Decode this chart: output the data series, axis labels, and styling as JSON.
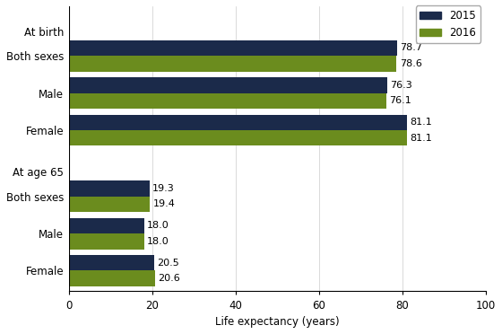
{
  "xlabel": "Life expectancy (years)",
  "xlim": [
    0,
    100
  ],
  "xticks": [
    0,
    20,
    40,
    60,
    80,
    100
  ],
  "bar_color_2015": "#1b2a4a",
  "bar_color_2016": "#6b8c1e",
  "bar_height": 0.38,
  "annotation_fontsize": 8,
  "label_fontsize": 8.5,
  "axis_fontsize": 8.5,
  "legend_fontsize": 8.5,
  "background_color": "#ffffff",
  "y_positions": {
    "hdr_birth": 9.2,
    "both_birth_2015": 8.6,
    "both_birth_2016": 8.22,
    "male_birth_2015": 7.4,
    "male_birth_2016": 7.02,
    "female_birth_2015": 6.2,
    "female_birth_2016": 5.82,
    "hdr_65": 5.0,
    "both_65_2015": 4.4,
    "both_65_2016": 4.02,
    "male_65_2015": 3.2,
    "male_65_2016": 2.82,
    "female_65_2015": 2.0,
    "female_65_2016": 1.62
  },
  "ytick_labels": [
    "At birth",
    "Both sexes",
    "Male",
    "Female",
    "At age 65",
    "Both sexes",
    "Male",
    "Female"
  ],
  "data": {
    "both_birth": [
      78.7,
      78.6
    ],
    "male_birth": [
      76.3,
      76.1
    ],
    "female_birth": [
      81.1,
      81.1
    ],
    "both_65": [
      19.3,
      19.4
    ],
    "male_65": [
      18.0,
      18.0
    ],
    "female_65": [
      20.5,
      20.6
    ]
  }
}
